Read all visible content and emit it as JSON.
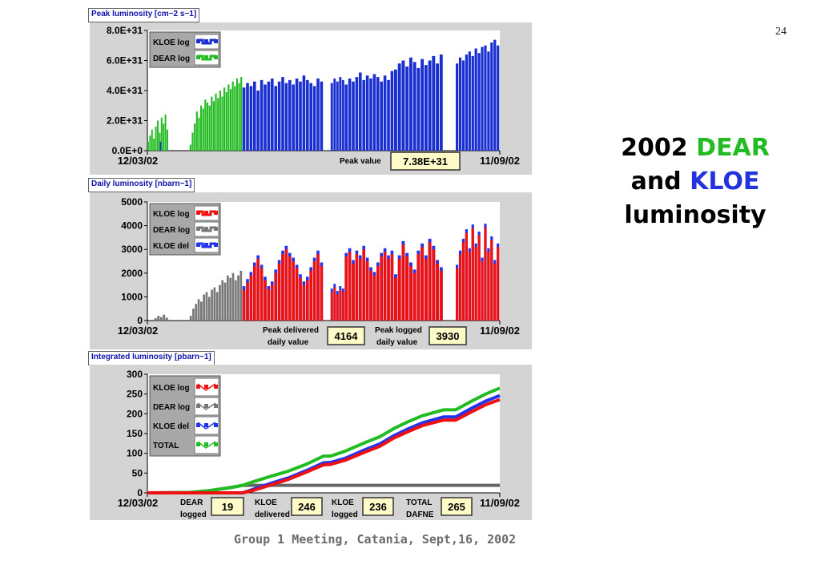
{
  "slide_number": "24",
  "headline": {
    "year": "2002",
    "dear": "DEAR",
    "and": "and",
    "kloe": "KLOE",
    "luminosity": "luminosity"
  },
  "footer": "Group 1 Meeting, Catania, Sept,16, 2002",
  "colors": {
    "kloe_peak": "#1a2fd0",
    "dear": "#22bb22",
    "kloe_log": "#ee1111",
    "dear_daily": "#777777",
    "kloe_del": "#2233ee",
    "total": "#22bb22",
    "panel_bg": "#d4d4d4",
    "legend_bg": "#a8a8a8",
    "value_box": "#fffbc8"
  },
  "chart_data": [
    {
      "type": "bar",
      "title": "Peak luminosity [cm−2 s−1]",
      "ylim": [
        0,
        8e+31
      ],
      "yticks": [
        "8.0E+31",
        "6.0E+31",
        "4.0E+31",
        "2.0E+31",
        "0.0E+0"
      ],
      "x_start": "12/03/02",
      "x_end": "11/09/02",
      "legend": [
        "KLOE log",
        "DEAR log"
      ],
      "annotations": [
        {
          "label": "Peak value",
          "value": "7.38E+31"
        }
      ],
      "series": [
        {
          "name": "DEAR log",
          "color": "#22bb22",
          "segments": [
            {
              "start": 0.0,
              "end": 0.06,
              "values_e31": [
                0.6,
                1.0,
                1.4,
                0.8,
                1.6,
                2.0,
                1.2,
                2.2,
                1.8,
                2.4,
                1.4
              ]
            },
            {
              "start": 0.12,
              "end": 0.27,
              "values_e31": [
                0.4,
                1.2,
                1.8,
                2.6,
                2.2,
                3.0,
                2.8,
                3.4,
                3.2,
                3.0,
                3.6,
                3.3,
                3.8,
                3.5,
                4.0,
                3.6,
                4.2,
                3.9,
                4.4,
                4.1,
                4.6,
                4.3,
                4.8,
                4.5,
                4.9
              ]
            }
          ]
        },
        {
          "name": "KLOE log",
          "color": "#1a2fd0",
          "segments": [
            {
              "start": 0.035,
              "end": 0.04,
              "values_e31": [
                0.6
              ]
            },
            {
              "start": 0.27,
              "end": 0.5,
              "values_e31": [
                4.2,
                4.5,
                4.3,
                4.6,
                4.0,
                4.7,
                4.4,
                4.6,
                4.8,
                4.3,
                4.6,
                4.9,
                4.5,
                4.7,
                4.4,
                4.8,
                4.6,
                5.0,
                4.7,
                4.5,
                4.3,
                4.8,
                4.6
              ]
            },
            {
              "start": 0.52,
              "end": 0.56,
              "values_e31": [
                4.5,
                4.8,
                4.6,
                4.9,
                4.7
              ]
            },
            {
              "start": 0.56,
              "end": 0.7,
              "values_e31": [
                4.4,
                4.8,
                4.6,
                4.9,
                5.2,
                4.7,
                5.0,
                4.8,
                5.1,
                4.9,
                4.6,
                5.0,
                4.7,
                5.3
              ]
            },
            {
              "start": 0.7,
              "end": 0.84,
              "values_e31": [
                5.4,
                5.8,
                6.0,
                5.6,
                6.2,
                5.9,
                5.5,
                6.1,
                5.7,
                6.0,
                6.3,
                5.8,
                6.4
              ]
            },
            {
              "start": 0.875,
              "end": 1.0,
              "values_e31": [
                5.8,
                6.2,
                6.0,
                6.4,
                6.6,
                6.3,
                6.8,
                6.5,
                6.9,
                7.0,
                6.6,
                7.2,
                7.38,
                7.0
              ]
            }
          ]
        }
      ]
    },
    {
      "type": "bar",
      "title": "Daily luminosity [nbarn−1]",
      "ylim": [
        0,
        5000
      ],
      "yticks": [
        "5000",
        "4000",
        "3000",
        "2000",
        "1000",
        "0"
      ],
      "x_start": "12/03/02",
      "x_end": "11/09/02",
      "legend": [
        "KLOE log",
        "DEAR log",
        "KLOE del"
      ],
      "annotations": [
        {
          "label_line1": "Peak delivered",
          "label_line2": "daily value",
          "value": "4164"
        },
        {
          "label_line1": "Peak logged",
          "label_line2": "daily value",
          "value": "3930"
        }
      ],
      "series": [
        {
          "name": "DEAR log",
          "color": "#777777",
          "segments": [
            {
              "start": 0.02,
              "end": 0.06,
              "values": [
                100,
                200,
                150,
                250,
                120
              ]
            },
            {
              "start": 0.12,
              "end": 0.27,
              "values": [
                200,
                500,
                700,
                900,
                800,
                1100,
                1200,
                1000,
                1300,
                1400,
                1200,
                1500,
                1700,
                1600,
                1900,
                1800,
                2000,
                1700,
                1900,
                2100
              ]
            }
          ]
        },
        {
          "name": "KLOE log",
          "color": "#ee1111",
          "segments": [
            {
              "start": 0.27,
              "end": 0.5,
              "values": [
                1300,
                1600,
                1900,
                2300,
                2600,
                2200,
                1700,
                1300,
                1500,
                2000,
                2400,
                2800,
                3000,
                2700,
                2500,
                2200,
                1800,
                1500,
                1700,
                2100,
                2500,
                2800,
                2300
              ]
            },
            {
              "start": 0.52,
              "end": 0.56,
              "values": [
                1200,
                1400,
                1100,
                1300,
                1200
              ]
            },
            {
              "start": 0.56,
              "end": 0.7,
              "values": [
                2700,
                2900,
                2400,
                2800,
                2600,
                3000,
                2500,
                2100,
                1900,
                2300,
                2700,
                2900,
                2600,
                2800
              ]
            },
            {
              "start": 0.7,
              "end": 0.84,
              "values": [
                1800,
                2600,
                3200,
                2700,
                2300,
                2000,
                2800,
                3100,
                2600,
                3300,
                3000,
                2400,
                2100
              ]
            },
            {
              "start": 0.875,
              "end": 1.0,
              "values": [
                2200,
                2800,
                3300,
                3700,
                2900,
                3900,
                3100,
                3600,
                2500,
                3930,
                2900,
                3400,
                2400,
                3100
              ]
            }
          ]
        },
        {
          "name": "KLOE del",
          "color": "#2233ee",
          "offset": 150
        }
      ]
    },
    {
      "type": "line",
      "title": "Integrated luminosity [pbarn−1]",
      "ylim": [
        0,
        300
      ],
      "yticks": [
        "300",
        "250",
        "200",
        "150",
        "100",
        "50",
        "0"
      ],
      "x_start": "12/03/02",
      "x_end": "11/09/02",
      "legend": [
        "KLOE log",
        "DEAR log",
        "KLOE del",
        "TOTAL"
      ],
      "annotations": [
        {
          "label_line1": "DEAR",
          "label_line2": "logged",
          "value": "19"
        },
        {
          "label_line1": "KLOE",
          "label_line2": "delivered",
          "value": "246"
        },
        {
          "label_line1": "KLOE",
          "label_line2": "logged",
          "value": "236"
        },
        {
          "label_line1": "TOTAL",
          "label_line2": "DAFNE",
          "value": "265"
        }
      ],
      "series": [
        {
          "name": "DEAR log",
          "color": "#666666",
          "points": [
            [
              0,
              0
            ],
            [
              0.12,
              1
            ],
            [
              0.18,
              6
            ],
            [
              0.24,
              14
            ],
            [
              0.27,
              19
            ],
            [
              1.0,
              19
            ]
          ]
        },
        {
          "name": "TOTAL",
          "color": "#22bb22",
          "points": [
            [
              0,
              0
            ],
            [
              0.12,
              1
            ],
            [
              0.18,
              6
            ],
            [
              0.24,
              14
            ],
            [
              0.27,
              19
            ],
            [
              0.3,
              28
            ],
            [
              0.35,
              42
            ],
            [
              0.4,
              55
            ],
            [
              0.45,
              72
            ],
            [
              0.5,
              93
            ],
            [
              0.52,
              93
            ],
            [
              0.56,
              105
            ],
            [
              0.62,
              128
            ],
            [
              0.66,
              142
            ],
            [
              0.7,
              163
            ],
            [
              0.74,
              180
            ],
            [
              0.78,
              195
            ],
            [
              0.84,
              210
            ],
            [
              0.875,
              210
            ],
            [
              0.92,
              232
            ],
            [
              0.96,
              250
            ],
            [
              1.0,
              265
            ]
          ]
        },
        {
          "name": "KLOE del",
          "color": "#2233ee",
          "points": [
            [
              0,
              0
            ],
            [
              0.27,
              0
            ],
            [
              0.3,
              9
            ],
            [
              0.35,
              24
            ],
            [
              0.4,
              38
            ],
            [
              0.45,
              56
            ],
            [
              0.5,
              76
            ],
            [
              0.52,
              77
            ],
            [
              0.56,
              87
            ],
            [
              0.62,
              110
            ],
            [
              0.66,
              124
            ],
            [
              0.7,
              145
            ],
            [
              0.74,
              162
            ],
            [
              0.78,
              177
            ],
            [
              0.84,
              192
            ],
            [
              0.875,
              192
            ],
            [
              0.92,
              214
            ],
            [
              0.96,
              232
            ],
            [
              1.0,
              246
            ]
          ]
        },
        {
          "name": "KLOE log",
          "color": "#ee1111",
          "points": [
            [
              0,
              0
            ],
            [
              0.27,
              0
            ],
            [
              0.3,
              6
            ],
            [
              0.35,
              20
            ],
            [
              0.4,
              34
            ],
            [
              0.45,
              52
            ],
            [
              0.5,
              71
            ],
            [
              0.52,
              72
            ],
            [
              0.56,
              82
            ],
            [
              0.62,
              104
            ],
            [
              0.66,
              118
            ],
            [
              0.7,
              139
            ],
            [
              0.74,
              155
            ],
            [
              0.78,
              170
            ],
            [
              0.84,
              184
            ],
            [
              0.875,
              184
            ],
            [
              0.92,
              205
            ],
            [
              0.96,
              223
            ],
            [
              1.0,
              236
            ]
          ]
        }
      ]
    }
  ]
}
